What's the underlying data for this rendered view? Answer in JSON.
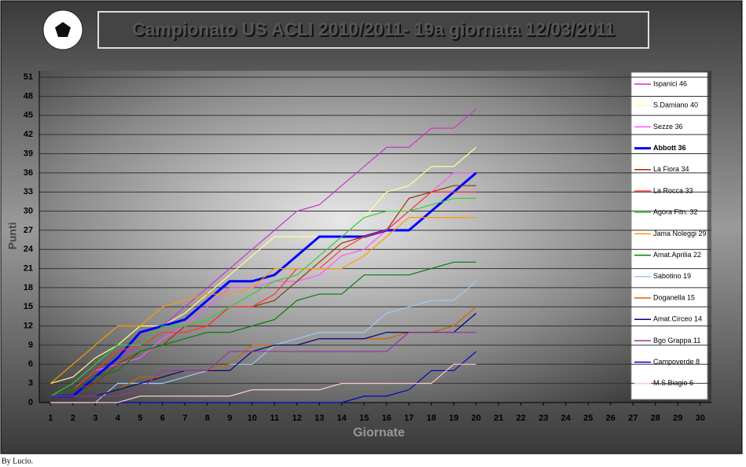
{
  "chart_data": {
    "type": "line",
    "title": "Campionato US ACLI 2010/2011- 19a giornata 12/03/2011",
    "y_label": "Punti",
    "x_label": "Giornate",
    "footer": "By Lucio.",
    "x": [
      1,
      2,
      3,
      4,
      5,
      6,
      7,
      8,
      9,
      10,
      11,
      12,
      13,
      14,
      15,
      16,
      17,
      18,
      19,
      20
    ],
    "xlim": [
      0.5,
      30.5
    ],
    "xticks": [
      1,
      2,
      3,
      4,
      5,
      6,
      7,
      8,
      9,
      10,
      11,
      12,
      13,
      14,
      15,
      16,
      17,
      18,
      19,
      20,
      21,
      22,
      23,
      24,
      25,
      26,
      27,
      28,
      29,
      30
    ],
    "ylim": [
      0,
      52
    ],
    "yticks": [
      0,
      3,
      6,
      9,
      12,
      15,
      18,
      21,
      24,
      27,
      30,
      33,
      36,
      39,
      42,
      45,
      48,
      51
    ],
    "grid": true,
    "legend": "right",
    "series": [
      {
        "name": "Ispanici 46",
        "color": "#cc33cc",
        "values": [
          1,
          2,
          4,
          7,
          9,
          12,
          15,
          18,
          21,
          24,
          27,
          30,
          31,
          34,
          37,
          40,
          40,
          43,
          43,
          46
        ]
      },
      {
        "name": "S.Damiano 40",
        "color": "#ffff99",
        "values": [
          3,
          4,
          7,
          9,
          12,
          12,
          14,
          17,
          20,
          23,
          26,
          26,
          26,
          26,
          29,
          33,
          34,
          37,
          37,
          40
        ]
      },
      {
        "name": "Sezze 36",
        "color": "#ff55ff",
        "values": [
          1,
          2,
          5,
          6,
          7,
          10,
          12,
          15,
          18,
          18,
          19,
          19,
          20,
          23,
          24,
          27,
          30,
          33,
          36,
          36
        ]
      },
      {
        "name": "Abbott 36",
        "color": "#0000ff",
        "bold": true,
        "values": [
          1,
          1,
          4,
          7,
          11,
          12,
          13,
          16,
          19,
          19,
          20,
          23,
          26,
          26,
          26,
          27,
          27,
          30,
          33,
          36
        ]
      },
      {
        "name": "La Fiora 34",
        "color": "#993300",
        "values": [
          1,
          2,
          3,
          6,
          8,
          9,
          12,
          12,
          15,
          15,
          16,
          19,
          22,
          25,
          26,
          27,
          32,
          33,
          34,
          34
        ]
      },
      {
        "name": "La Rocca  33",
        "color": "#ff3333",
        "values": [
          1,
          2,
          5,
          8,
          9,
          11,
          11,
          12,
          15,
          15,
          17,
          21,
          21,
          24,
          26,
          27,
          30,
          33,
          33,
          33
        ]
      },
      {
        "name": "Agora Fitn. 32",
        "color": "#33cc33",
        "values": [
          1,
          3,
          6,
          9,
          9,
          12,
          12,
          13,
          15,
          17,
          19,
          20,
          23,
          26,
          29,
          30,
          30,
          31,
          32,
          32
        ]
      },
      {
        "name": "Jama Noleggi 29",
        "color": "#ff9900",
        "values": [
          3,
          6,
          9,
          12,
          12,
          15,
          16,
          17,
          17,
          18,
          21,
          21,
          21,
          21,
          23,
          26,
          29,
          29,
          29,
          29
        ]
      },
      {
        "name": "Amat.Aprilia 22",
        "color": "#008000",
        "values": [
          1,
          2,
          4,
          5,
          8,
          9,
          10,
          11,
          11,
          12,
          13,
          16,
          17,
          17,
          20,
          20,
          20,
          21,
          22,
          22
        ]
      },
      {
        "name": "Sabotino 19",
        "color": "#99ccff",
        "values": [
          0,
          0,
          0,
          3,
          3,
          3,
          4,
          5,
          6,
          6,
          9,
          10,
          11,
          11,
          11,
          14,
          15,
          16,
          16,
          19
        ]
      },
      {
        "name": "Doganella 15",
        "color": "#cc6600",
        "values": [
          1,
          1,
          1,
          2,
          4,
          4,
          5,
          5,
          6,
          9,
          9,
          9,
          10,
          10,
          10,
          10,
          11,
          11,
          12,
          15
        ]
      },
      {
        "name": "Amat.Circeo 14",
        "color": "#000080",
        "values": [
          1,
          1,
          1,
          2,
          3,
          4,
          5,
          5,
          5,
          8,
          9,
          9,
          10,
          10,
          10,
          11,
          11,
          11,
          11,
          14
        ]
      },
      {
        "name": "Bgo Grappa 11",
        "color": "#993399",
        "values": [
          1,
          1,
          1,
          1,
          2,
          5,
          5,
          5,
          8,
          8,
          8,
          8,
          8,
          8,
          8,
          8,
          11,
          11,
          11,
          11
        ]
      },
      {
        "name": "Campoverde 8",
        "color": "#0000cc",
        "values": [
          0,
          0,
          0,
          0,
          0,
          0,
          0,
          0,
          0,
          0,
          0,
          0,
          0,
          0,
          1,
          1,
          2,
          5,
          5,
          8
        ]
      },
      {
        "name": "M.S.Biagio 6",
        "color": "#ffcccc",
        "values": [
          0,
          0,
          0,
          0,
          1,
          1,
          1,
          1,
          1,
          2,
          2,
          2,
          2,
          3,
          3,
          3,
          3,
          3,
          6,
          6
        ]
      }
    ]
  }
}
